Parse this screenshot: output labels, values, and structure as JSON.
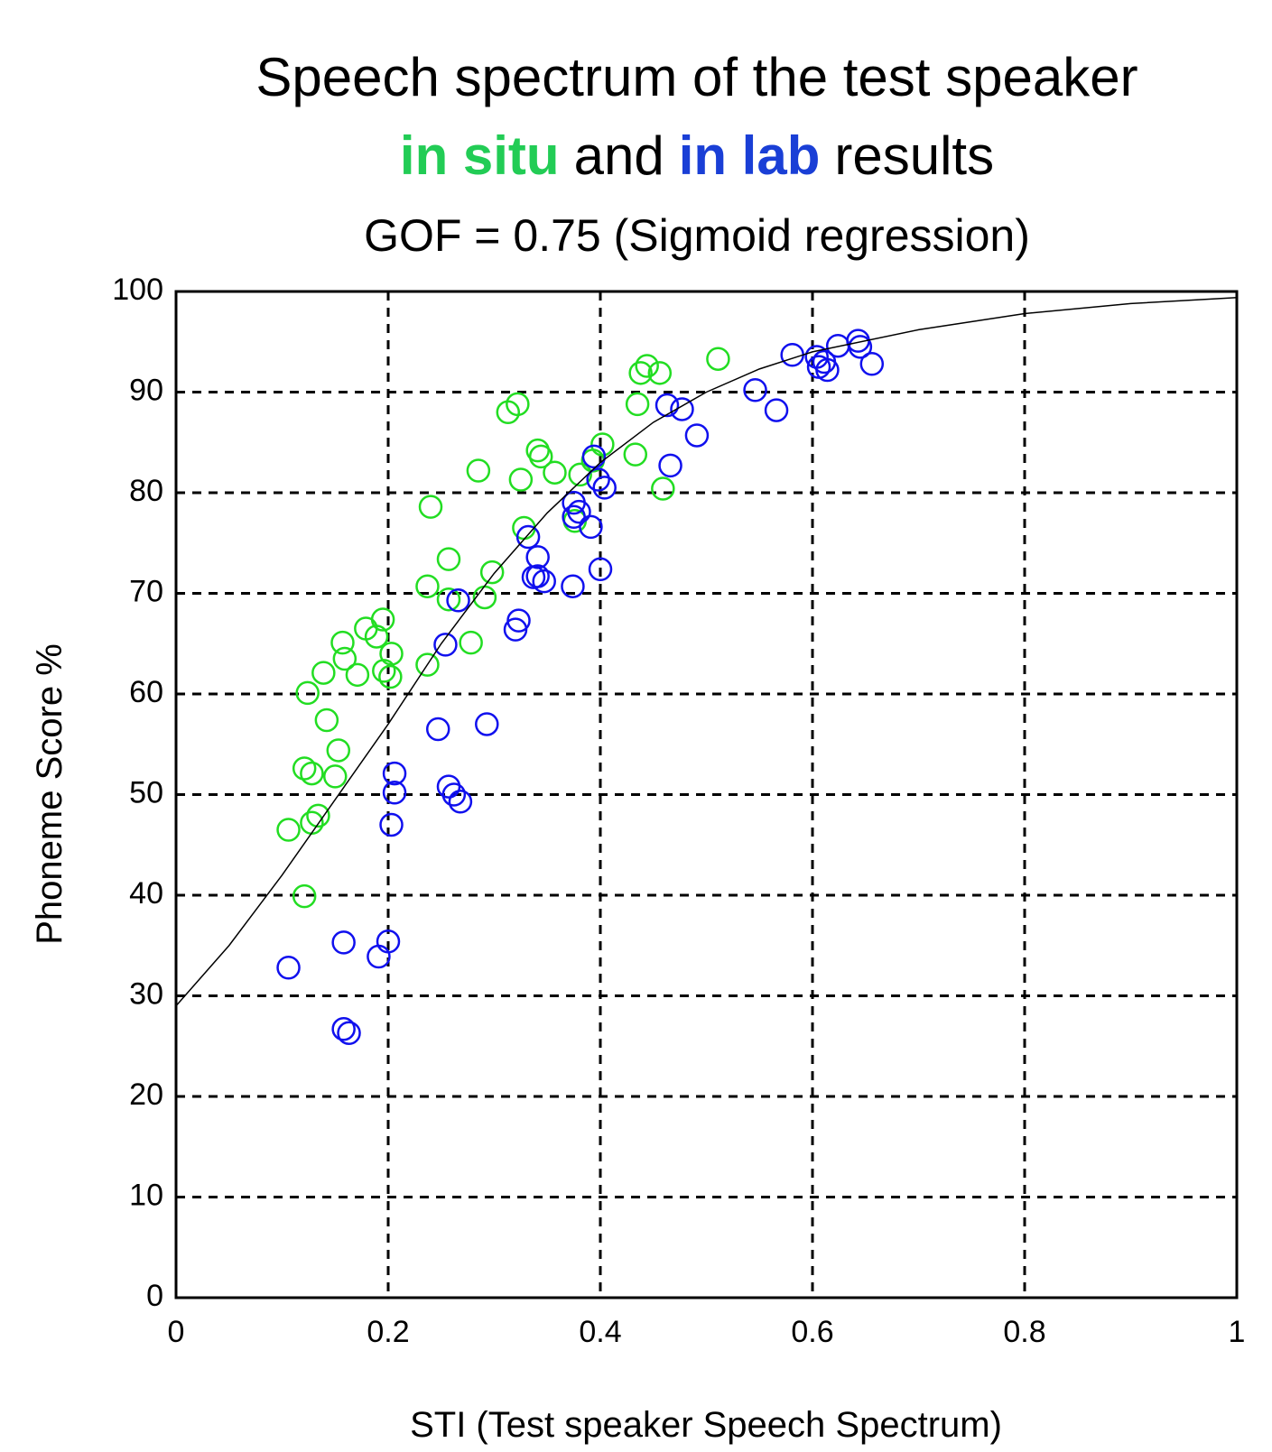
{
  "chart_data": {
    "type": "scatter",
    "title": "Speech spectrum of the test speaker",
    "subtitle": [
      {
        "text": "in situ",
        "color": "#22cc55",
        "bold": true
      },
      {
        "text": "and",
        "color": "#000000",
        "bold": false
      },
      {
        "text": "in lab",
        "color": "#1a3fd6",
        "bold": true
      },
      {
        "text": "results",
        "color": "#000000",
        "bold": false
      }
    ],
    "annotation": "GOF = 0.75 (Sigmoid regression)",
    "x_label": "STI (Test speaker Speech Spectrum)",
    "y_label": "Phoneme Score %",
    "xlim": [
      0,
      1
    ],
    "ylim": [
      0,
      100
    ],
    "xticks": [
      0,
      0.2,
      0.4,
      0.6,
      0.8,
      1
    ],
    "yticks": [
      0,
      10,
      20,
      30,
      40,
      50,
      60,
      70,
      80,
      90,
      100
    ],
    "grid": true,
    "series": [
      {
        "type": "scatter",
        "color": "#22dd22",
        "x": [
          0.106,
          0.121,
          0.124,
          0.121,
          0.128,
          0.128,
          0.134,
          0.139,
          0.142,
          0.15,
          0.153,
          0.157,
          0.159,
          0.171,
          0.179,
          0.189,
          0.195,
          0.196,
          0.202,
          0.203,
          0.237,
          0.237,
          0.24,
          0.257,
          0.257,
          0.278,
          0.285,
          0.291,
          0.298,
          0.313,
          0.322,
          0.325,
          0.328,
          0.341,
          0.344,
          0.357,
          0.376,
          0.381,
          0.393,
          0.402,
          0.433,
          0.435,
          0.438,
          0.444,
          0.456,
          0.459,
          0.511
        ],
        "values": [
          46.5,
          39.9,
          60.1,
          52.6,
          52.1,
          47.2,
          47.9,
          62.1,
          57.4,
          51.8,
          54.4,
          65.1,
          63.5,
          61.9,
          66.5,
          65.7,
          67.4,
          62.3,
          61.7,
          64.0,
          62.9,
          70.7,
          78.6,
          73.4,
          69.4,
          65.1,
          82.2,
          69.6,
          72.1,
          88.0,
          88.8,
          81.3,
          76.5,
          84.2,
          83.6,
          82.0,
          77.2,
          81.8,
          83.2,
          84.8,
          83.8,
          88.8,
          91.9,
          92.6,
          91.9,
          80.4,
          93.3
        ]
      },
      {
        "type": "scatter",
        "color": "#1010ee",
        "x": [
          0.106,
          0.158,
          0.158,
          0.163,
          0.191,
          0.2,
          0.203,
          0.206,
          0.206,
          0.247,
          0.254,
          0.257,
          0.262,
          0.268,
          0.266,
          0.293,
          0.32,
          0.323,
          0.332,
          0.337,
          0.341,
          0.341,
          0.347,
          0.374,
          0.375,
          0.375,
          0.38,
          0.391,
          0.394,
          0.398,
          0.4,
          0.404,
          0.466,
          0.463,
          0.477,
          0.491,
          0.546,
          0.566,
          0.581,
          0.604,
          0.606,
          0.611,
          0.614,
          0.624,
          0.643,
          0.645,
          0.656
        ],
        "values": [
          32.8,
          35.3,
          26.7,
          26.3,
          33.9,
          35.4,
          47.0,
          52.1,
          50.2,
          56.5,
          64.9,
          50.8,
          50.0,
          49.3,
          69.3,
          57.0,
          66.4,
          67.3,
          75.6,
          71.6,
          73.6,
          71.7,
          71.2,
          70.7,
          79.0,
          77.6,
          78.1,
          76.6,
          83.6,
          81.3,
          72.4,
          80.5,
          82.7,
          88.7,
          88.3,
          85.7,
          90.2,
          88.2,
          93.7,
          93.5,
          92.5,
          93.0,
          92.2,
          94.6,
          95.1,
          94.5,
          92.8
        ]
      },
      {
        "type": "line",
        "color": "#000000",
        "x": [
          0,
          0.05,
          0.1,
          0.15,
          0.2,
          0.25,
          0.3,
          0.35,
          0.4,
          0.45,
          0.5,
          0.55,
          0.6,
          0.7,
          0.8,
          0.9,
          1
        ],
        "values": [
          29,
          35,
          42,
          49.5,
          57,
          65,
          72,
          78,
          83,
          87,
          90,
          92.3,
          94,
          96.2,
          97.8,
          98.8,
          99.4
        ]
      }
    ]
  }
}
